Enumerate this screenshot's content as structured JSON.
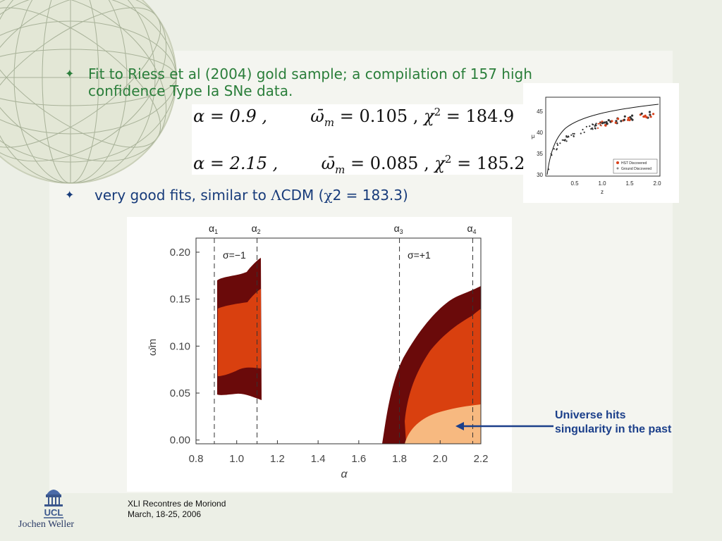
{
  "bullets": [
    {
      "text": "Fit to Riess et al (2004) gold sample; a compilation of 157 high confidence Type Ia SNe data."
    },
    {
      "text_pre": "very good fits, similar to ",
      "symbol_lambda": "Λ",
      "text_mid": "CDM (",
      "symbol_chi": "χ",
      "text_post": "2 = 183.3)"
    }
  ],
  "bullet_glyph": "✦",
  "equations": [
    {
      "alpha": "α = 0.9 ,",
      "omega": "ω̄",
      "omega_sub": "m",
      "omega_val": " = 0.105 ,",
      "chi": "χ",
      "chi_sup": "2",
      "chi_val": " = 184.9"
    },
    {
      "alpha": "α = 2.15 ,",
      "omega": "ω̄",
      "omega_sub": "m",
      "omega_val": " = 0.085 ,",
      "chi": "χ",
      "chi_sup": "2",
      "chi_val": " = 185.2"
    }
  ],
  "hubble_plot": {
    "y_ticks": [
      "45",
      "40",
      "35",
      "30"
    ],
    "x_ticks": [
      "0.5",
      "1.0",
      "1.5",
      "2.0"
    ],
    "xlabel": "z",
    "ylabel": "μ",
    "legend": [
      "HST Discovered",
      "Ground Discovered"
    ]
  },
  "chart_data": {
    "type": "area",
    "xlabel": "α",
    "ylabel": "ω̄m",
    "x_ticks": [
      "0.8",
      "1.0",
      "1.2",
      "1.4",
      "1.6",
      "1.8",
      "2.0",
      "2.2"
    ],
    "y_ticks": [
      "0.20",
      "0.15",
      "0.10",
      "0.05",
      "0.00"
    ],
    "xlim": [
      0.8,
      2.2
    ],
    "ylim": [
      -0.004,
      0.215
    ],
    "boundaries": [
      {
        "label": "α",
        "sub": "1",
        "x": 0.89
      },
      {
        "label": "α",
        "sub": "2",
        "x": 1.1
      },
      {
        "label": "α",
        "sub": "3",
        "x": 1.8
      },
      {
        "label": "α",
        "sub": "4",
        "x": 2.16
      }
    ],
    "region_labels": [
      "σ=−1",
      "σ=+1"
    ],
    "colors": {
      "outer": "#6a0a0a",
      "inner": "#d9400f",
      "singular": "#f7b980"
    }
  },
  "annotation": "Universe hits singularity in the past",
  "footer": {
    "line1": "XLI Recontres de Moriond",
    "line2": "March, 18-25, 2006"
  },
  "logo_text": "UCL",
  "author": "Jochen Weller"
}
